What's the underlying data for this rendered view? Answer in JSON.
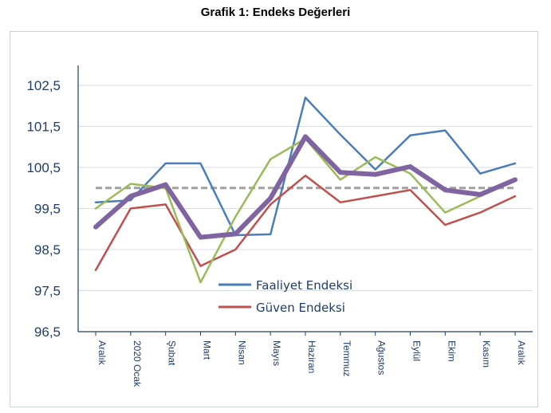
{
  "chart_data": {
    "type": "line",
    "title": "Grafik 1: Endeks Değerleri",
    "categories": [
      "Aralık",
      "2020 Ocak",
      "Şubat",
      "Mart",
      "Nisan",
      "Mayıs",
      "Haziran",
      "Temmuz",
      "Ağustos",
      "Eylül",
      "Ekim",
      "Kasım",
      "Aralık"
    ],
    "y_ticks": [
      "102,5",
      "101,5",
      "100,5",
      "99,5",
      "98,5",
      "97,5",
      "96,5"
    ],
    "ylim": [
      96.5,
      102.5
    ],
    "grid": true,
    "reference_line": 100,
    "legend_position": "bottom-center",
    "series": [
      {
        "name": "Faaliyet Endeksi",
        "color": "#4a7ebb",
        "values": [
          99.65,
          99.7,
          100.6,
          100.6,
          98.85,
          98.87,
          102.2,
          101.3,
          100.45,
          101.28,
          101.4,
          100.35,
          100.6
        ]
      },
      {
        "name": "Güven Endeksi",
        "color": "#c0504d",
        "values": [
          98.0,
          99.5,
          99.6,
          98.1,
          98.5,
          99.6,
          100.3,
          99.65,
          99.8,
          99.95,
          99.1,
          99.4,
          99.8
        ]
      },
      {
        "name": "",
        "color": "#9bbb59",
        "values": [
          99.5,
          100.1,
          100.0,
          97.7,
          99.3,
          100.7,
          101.2,
          100.2,
          100.75,
          100.35,
          99.4,
          99.8,
          100.2
        ]
      },
      {
        "name": "",
        "color": "#8064a2",
        "values": [
          99.05,
          99.8,
          100.08,
          98.8,
          98.88,
          99.75,
          101.25,
          100.38,
          100.33,
          100.52,
          99.95,
          99.84,
          100.2
        ]
      }
    ]
  }
}
